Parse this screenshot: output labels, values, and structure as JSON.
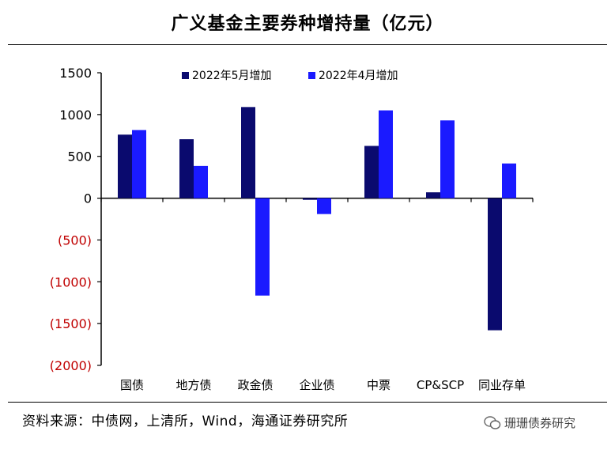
{
  "chart_data": {
    "type": "bar",
    "title": "广义基金主要券种增持量（亿元）",
    "categories": [
      "国债",
      "地方债",
      "政金债",
      "企业债",
      "中票",
      "CP&SCP",
      "同业存单"
    ],
    "series": [
      {
        "name": "2022年5月增加",
        "color": "#0a0a6e",
        "values": [
          760,
          705,
          1090,
          -20,
          625,
          70,
          -1580
        ]
      },
      {
        "name": "2022年4月增加",
        "color": "#1a1aff",
        "values": [
          815,
          385,
          -1165,
          -190,
          1050,
          930,
          415
        ]
      }
    ],
    "ylim": [
      -2000,
      1500
    ],
    "yticks": [
      1500,
      1000,
      500,
      0,
      -500,
      -1000,
      -1500,
      -2000
    ],
    "ytick_labels": [
      "1500",
      "1000",
      "500",
      "0",
      "(500)",
      "(1000)",
      "(1500)",
      "(2000)"
    ],
    "negative_tick_color": "#c00000",
    "legend_position": "top-center",
    "xlabel": "",
    "ylabel": ""
  },
  "footer": {
    "source": "资料来源：中债网，上清所，Wind，海通证券研究所",
    "watermark": "珊珊债券研究"
  }
}
